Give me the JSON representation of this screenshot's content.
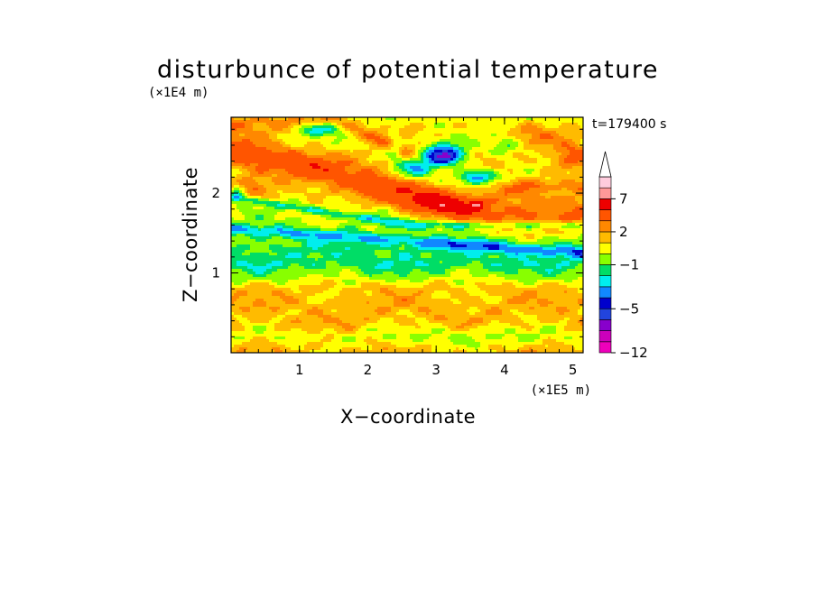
{
  "chart_data": {
    "type": "heatmap",
    "title": "disturbunce of potential temperature",
    "xlabel": "X−coordinate",
    "ylabel": "Z−coordinate",
    "x_unit": "(×1E5 m)",
    "y_unit": "(×1E4 m)",
    "time_label": "t=179400 s",
    "xlim": [
      0,
      5.15
    ],
    "ylim": [
      0,
      2.95
    ],
    "x_ticks": [
      {
        "value": 1,
        "label": "1"
      },
      {
        "value": 2,
        "label": "2"
      },
      {
        "value": 3,
        "label": "3"
      },
      {
        "value": 4,
        "label": "4"
      },
      {
        "value": 5,
        "label": "5"
      }
    ],
    "x_minor_step": 0.2,
    "y_ticks": [
      {
        "value": 1,
        "label": "1"
      },
      {
        "value": 2,
        "label": "2"
      }
    ],
    "y_minor_step": 0.2,
    "colorbar": {
      "levels": [
        -12,
        -10,
        -8,
        -6,
        -5,
        -4,
        -3,
        -2,
        -1,
        0,
        1,
        2,
        3,
        5,
        7,
        9,
        11
      ],
      "colors": [
        "#ee00bb",
        "#cc00bb",
        "#8800cc",
        "#2244dd",
        "#0000cc",
        "#1188ff",
        "#00eeee",
        "#00dd66",
        "#88ff00",
        "#ffff00",
        "#ffbb00",
        "#ff8800",
        "#ff5500",
        "#ee0000",
        "#ff9999",
        "#ffccdd"
      ],
      "labels": [
        {
          "value": -12,
          "label": "−12"
        },
        {
          "value": -5,
          "label": "−5"
        },
        {
          "value": -1,
          "label": "−1"
        },
        {
          "value": 2,
          "label": "2"
        },
        {
          "value": 7,
          "label": "7"
        }
      ],
      "extend": "max"
    },
    "features": [
      {
        "kind": "background",
        "z_bands": [
          {
            "z": 0.0,
            "v": 1.5
          },
          {
            "z": 0.2,
            "v": 0.5
          },
          {
            "z": 0.4,
            "v": 1.6
          },
          {
            "z": 0.6,
            "v": 1.1
          },
          {
            "z": 0.8,
            "v": 1.4
          },
          {
            "z": 0.95,
            "v": -0.2
          },
          {
            "z": 1.1,
            "v": -1.6
          },
          {
            "z": 1.3,
            "v": -1.4
          },
          {
            "z": 1.45,
            "v": -0.6
          },
          {
            "z": 1.6,
            "v": -0.2
          },
          {
            "z": 1.8,
            "v": 0.4
          },
          {
            "z": 2.0,
            "v": 1.0
          },
          {
            "z": 2.2,
            "v": 0.7
          },
          {
            "z": 2.4,
            "v": 1.3
          },
          {
            "z": 2.6,
            "v": 0.6
          },
          {
            "z": 2.8,
            "v": 0.9
          },
          {
            "z": 2.95,
            "v": 0.4
          }
        ]
      },
      {
        "kind": "band",
        "x0": 0.0,
        "z0": 2.55,
        "x1": 3.9,
        "z1": 1.7,
        "width": 0.2,
        "amp": 3.3
      },
      {
        "kind": "band",
        "x0": 1.5,
        "z0": 2.9,
        "x1": 4.0,
        "z1": 2.05,
        "width": 0.12,
        "amp": 1.8
      },
      {
        "kind": "band",
        "x0": 0.0,
        "z0": 1.55,
        "x1": 5.15,
        "z1": 1.25,
        "width": 0.07,
        "amp": -2.6
      },
      {
        "kind": "band",
        "x0": 0.0,
        "z0": 1.95,
        "x1": 2.6,
        "z1": 1.6,
        "width": 0.05,
        "amp": -2.4
      },
      {
        "kind": "band",
        "x0": 0.0,
        "z0": 0.6,
        "x1": 5.15,
        "z1": 0.6,
        "width": 0.1,
        "amp": 0.5
      },
      {
        "kind": "blob",
        "x": 3.1,
        "z": 2.45,
        "rx": 0.32,
        "rz": 0.14,
        "amp": -8.5
      },
      {
        "kind": "blob",
        "x": 2.7,
        "z": 2.3,
        "rx": 0.25,
        "rz": 0.12,
        "amp": -3.5
      },
      {
        "kind": "blob",
        "x": 3.6,
        "z": 2.2,
        "rx": 0.3,
        "rz": 0.1,
        "amp": -5.5
      },
      {
        "kind": "blob",
        "x": 1.3,
        "z": 2.8,
        "rx": 0.4,
        "rz": 0.08,
        "amp": -3.5
      },
      {
        "kind": "blob",
        "x": 2.4,
        "z": 2.6,
        "rx": 0.1,
        "rz": 0.25,
        "amp": -2.0
      },
      {
        "kind": "blob",
        "x": 3.05,
        "z": 1.85,
        "rx": 0.5,
        "rz": 0.14,
        "amp": 3.0
      },
      {
        "kind": "blob",
        "x": 3.6,
        "z": 1.87,
        "rx": 0.1,
        "rz": 0.05,
        "amp": 3.5
      },
      {
        "kind": "blob",
        "x": 0.3,
        "z": 2.1,
        "rx": 0.2,
        "rz": 0.12,
        "amp": 1.8
      },
      {
        "kind": "blob",
        "x": 4.7,
        "z": 2.0,
        "rx": 0.25,
        "rz": 0.05,
        "amp": -2.4
      },
      {
        "kind": "blob",
        "x": 5.0,
        "z": 2.5,
        "rx": 0.3,
        "rz": 0.2,
        "amp": 2.5
      },
      {
        "kind": "blob",
        "x": 4.5,
        "z": 2.7,
        "rx": 0.3,
        "rz": 0.15,
        "amp": 1.5
      },
      {
        "kind": "blob",
        "x": 0.1,
        "z": 2.0,
        "rx": 0.1,
        "rz": 0.1,
        "amp": -2.5
      },
      {
        "kind": "blob",
        "x": 3.5,
        "z": 0.2,
        "rx": 1.3,
        "rz": 0.15,
        "amp": -0.8
      },
      {
        "kind": "blob",
        "x": 4.0,
        "z": 2.6,
        "rx": 0.2,
        "rz": 0.12,
        "amp": -1.6
      }
    ],
    "noise": {
      "amp": 0.55,
      "kx": [
        3.1,
        7.3,
        11.9
      ],
      "kz": [
        9.2,
        17.5,
        27.1
      ],
      "phase": [
        0.3,
        1.7,
        2.9
      ]
    }
  }
}
